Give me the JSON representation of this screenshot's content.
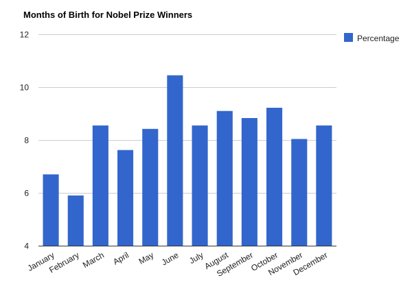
{
  "chart_data": {
    "type": "bar",
    "title": "Months of Birth for Nobel Prize Winners",
    "xlabel": "",
    "ylabel": "",
    "categories": [
      "January",
      "February",
      "March",
      "April",
      "May",
      "June",
      "July",
      "August",
      "September",
      "October",
      "November",
      "December"
    ],
    "series": [
      {
        "name": "Percentage",
        "color": "#3366cc",
        "values": [
          6.7,
          5.9,
          8.55,
          7.62,
          8.42,
          10.45,
          8.55,
          9.1,
          8.83,
          9.22,
          8.04,
          8.55
        ]
      }
    ],
    "ylim": [
      4,
      12
    ],
    "yticks": [
      4,
      6,
      8,
      10,
      12
    ],
    "grid": true,
    "legend": "right"
  }
}
